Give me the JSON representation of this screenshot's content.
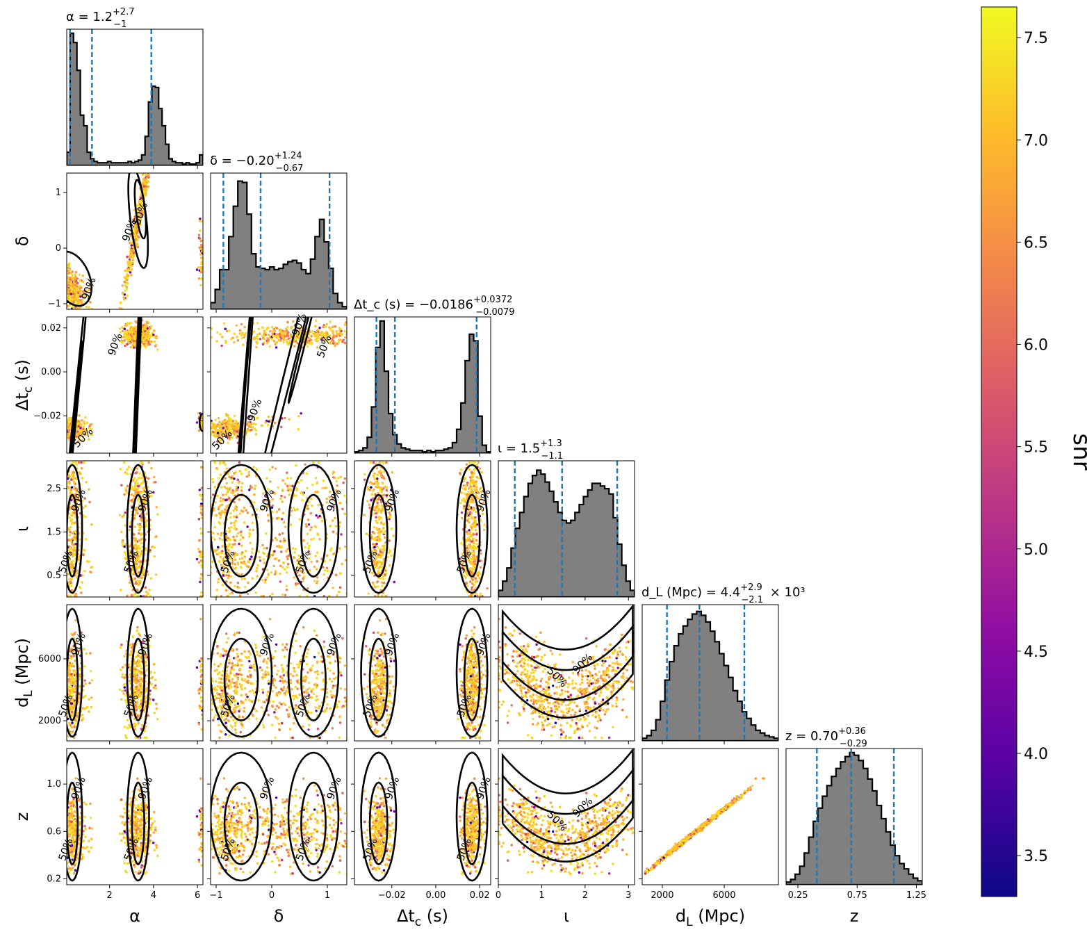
{
  "chart_data": {
    "type": "corner",
    "params": [
      {
        "key": "alpha",
        "label": "α",
        "range": [
          0.05,
          6.25
        ],
        "ticks": [
          {
            "v": 2,
            "t": "2"
          },
          {
            "v": 4,
            "t": "4"
          },
          {
            "v": 6,
            "t": "6"
          }
        ],
        "title": "α = 1.2",
        "title_sup": "+2.7",
        "title_sub": "−1",
        "quantiles": [
          0.2,
          1.2,
          3.9
        ],
        "hist": [
          0.1,
          1.0,
          0.93,
          0.72,
          0.38,
          0.3,
          0.1,
          0.05,
          0.03,
          0.02,
          0.02,
          0.02,
          0.03,
          0.02,
          0.02,
          0.02,
          0.02,
          0.02,
          0.03,
          0.02,
          0.03,
          0.04,
          0.08,
          0.22,
          0.48,
          0.6,
          0.59,
          0.43,
          0.3,
          0.16,
          0.05,
          0.03,
          0.02,
          0.02,
          0.01,
          0.02,
          0.01,
          0.01,
          0.02,
          0.08
        ]
      },
      {
        "key": "delta",
        "label": "δ",
        "range": [
          -1.1,
          1.35
        ],
        "ticks": [
          {
            "v": -1,
            "t": "−1"
          },
          {
            "v": 0,
            "t": "0"
          },
          {
            "v": 1,
            "t": "1"
          }
        ],
        "title": "δ = −0.20",
        "title_sup": "+1.24",
        "title_sub": "−0.67",
        "quantiles": [
          -0.87,
          -0.2,
          1.04
        ],
        "hist": [
          0.05,
          0.15,
          0.3,
          0.3,
          0.55,
          0.78,
          0.97,
          0.96,
          0.72,
          0.42,
          0.32,
          0.31,
          0.3,
          0.32,
          0.3,
          0.31,
          0.34,
          0.36,
          0.37,
          0.35,
          0.3,
          0.27,
          0.38,
          0.55,
          0.68,
          0.51,
          0.31,
          0.12,
          0.05,
          0.02
        ]
      },
      {
        "key": "dtc",
        "label": "Δt_c (s)",
        "range": [
          -0.037,
          0.025
        ],
        "ticks": [
          {
            "v": -0.02,
            "t": "−0.02"
          },
          {
            "v": 0,
            "t": "0.00"
          },
          {
            "v": 0.02,
            "t": "0.02"
          }
        ],
        "title": "Δt_c (s) = −0.0186",
        "title_sup": "+0.0372",
        "title_sub": "−0.0079",
        "quantiles": [
          -0.027,
          -0.0186,
          0.0186
        ],
        "hist": [
          0.01,
          0.02,
          0.04,
          0.12,
          0.35,
          0.8,
          1.0,
          0.62,
          0.3,
          0.14,
          0.07,
          0.04,
          0.03,
          0.02,
          0.02,
          0.02,
          0.01,
          0.02,
          0.01,
          0.02,
          0.02,
          0.03,
          0.04,
          0.08,
          0.18,
          0.38,
          0.7,
          0.9,
          0.85,
          0.28,
          0.06,
          0.01
        ]
      },
      {
        "key": "iota",
        "label": "ι",
        "range": [
          0.0,
          3.14
        ],
        "ticks": [
          {
            "v": 0.5,
            "t": "0.5"
          },
          {
            "v": 1.5,
            "t": "1.5"
          },
          {
            "v": 2.5,
            "t": "2.5"
          }
        ],
        "tick_x": [
          {
            "v": 0,
            "t": "0"
          },
          {
            "v": 1,
            "t": "1"
          },
          {
            "v": 2,
            "t": "2"
          },
          {
            "v": 3,
            "t": "3"
          }
        ],
        "title": "ι = 1.5",
        "title_sup": "+1.3",
        "title_sub": "−1.1",
        "quantiles": [
          0.38,
          1.47,
          2.74
        ],
        "hist": [
          0.05,
          0.12,
          0.22,
          0.37,
          0.52,
          0.64,
          0.76,
          0.86,
          0.92,
          0.96,
          0.93,
          0.87,
          0.8,
          0.72,
          0.64,
          0.58,
          0.56,
          0.58,
          0.64,
          0.7,
          0.76,
          0.81,
          0.86,
          0.86,
          0.84,
          0.82,
          0.78,
          0.6,
          0.4,
          0.24,
          0.12,
          0.05
        ]
      },
      {
        "key": "dl",
        "label": "d_L (Mpc)",
        "range": [
          700,
          9500
        ],
        "ticks": [
          {
            "v": 2000,
            "t": "2000"
          },
          {
            "v": 6000,
            "t": "6000"
          }
        ],
        "title": "d_L (Mpc) = 4.4",
        "title_sup": "+2.9",
        "title_sub": "−2.1",
        "title_tail": " × 10³",
        "quantiles": [
          2300,
          4400,
          7300
        ],
        "hist": [
          0.02,
          0.04,
          0.08,
          0.16,
          0.3,
          0.46,
          0.6,
          0.72,
          0.81,
          0.87,
          0.92,
          0.96,
          0.98,
          0.95,
          0.9,
          0.83,
          0.75,
          0.66,
          0.57,
          0.48,
          0.38,
          0.3,
          0.22,
          0.17,
          0.12,
          0.08,
          0.06,
          0.04,
          0.03,
          0.02
        ]
      },
      {
        "key": "z",
        "label": "z",
        "range": [
          0.15,
          1.3
        ],
        "ticks": [
          {
            "v": 0.2,
            "t": "0.2"
          },
          {
            "v": 0.6,
            "t": "0.6"
          },
          {
            "v": 1.0,
            "t": "1.0"
          }
        ],
        "tick_x": [
          {
            "v": 0.25,
            "t": "0.25"
          },
          {
            "v": 0.75,
            "t": "0.75"
          },
          {
            "v": 1.25,
            "t": "1.25"
          }
        ],
        "title": "z = 0.70",
        "title_sup": "+0.36",
        "title_sub": "−0.29",
        "quantiles": [
          0.41,
          0.7,
          1.06
        ],
        "hist": [
          0.02,
          0.04,
          0.08,
          0.14,
          0.24,
          0.36,
          0.48,
          0.58,
          0.67,
          0.75,
          0.82,
          0.88,
          0.93,
          0.97,
          1.0,
          0.98,
          0.94,
          0.88,
          0.8,
          0.71,
          0.6,
          0.5,
          0.4,
          0.3,
          0.22,
          0.16,
          0.12,
          0.08,
          0.05,
          0.03
        ]
      }
    ],
    "contour_labels": [
      "50%",
      "90%"
    ],
    "colorbar": {
      "label": "snr",
      "min": 3.3,
      "max": 7.65,
      "ticks": [
        "3.5",
        "4.0",
        "4.5",
        "5.0",
        "5.5",
        "6.0",
        "6.5",
        "7.0",
        "7.5"
      ],
      "colormap": "plasma"
    },
    "colors": {
      "hist_fill": "#808080",
      "quantile_line": "#1f77b4",
      "contour": "#000000"
    }
  }
}
